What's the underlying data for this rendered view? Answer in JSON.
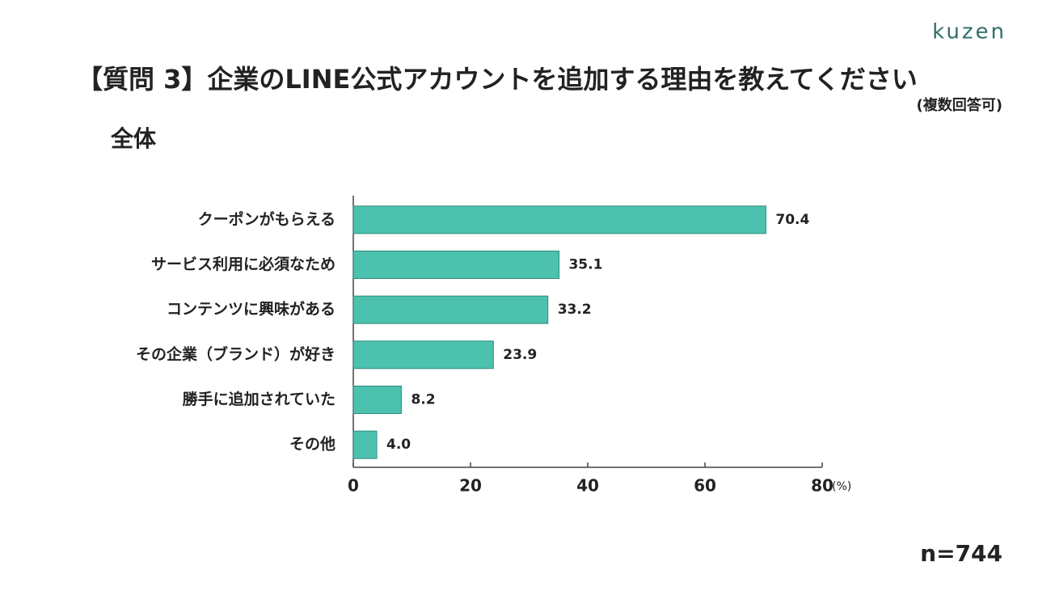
{
  "brand": "kuzen",
  "chart_data": {
    "type": "bar",
    "orientation": "horizontal",
    "title": "【質問 3】企業のLINE公式アカウントを追加する理由を教えてください",
    "subtitle": "(複数回答可)",
    "section": "全体",
    "categories": [
      "クーポンがもらえる",
      "サービス利用に必須なため",
      "コンテンツに興味がある",
      "その企業（ブランド）が好き",
      "勝手に追加されていた",
      "その他"
    ],
    "values": [
      70.4,
      35.1,
      33.2,
      23.9,
      8.2,
      4.0
    ],
    "value_labels": [
      "70.4",
      "35.1",
      "33.2",
      "23.9",
      "8.2",
      "4.0"
    ],
    "color": "#4cc1ae",
    "xlim": [
      0,
      80
    ],
    "xticks": [
      0,
      20,
      40,
      60,
      80
    ],
    "x_unit": "(%)",
    "note": "n=744"
  }
}
